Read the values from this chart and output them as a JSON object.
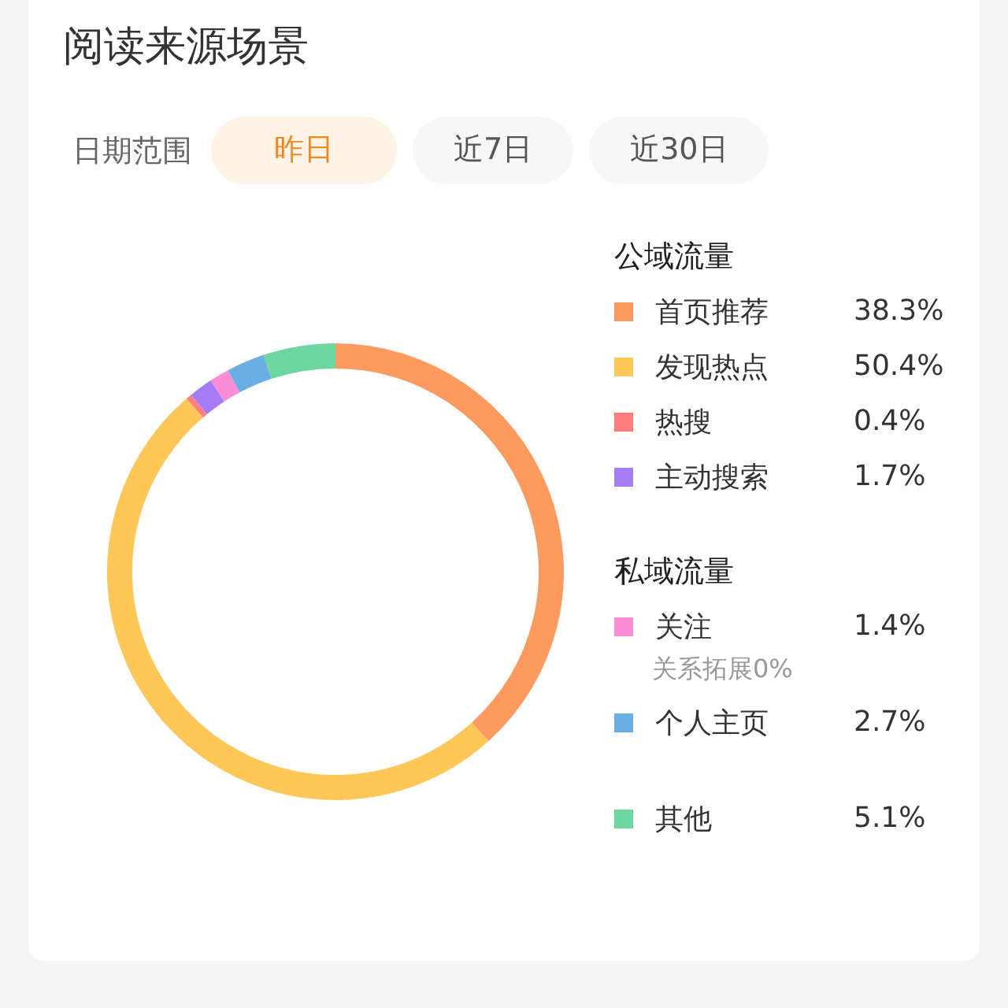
{
  "chart_data": {
    "type": "donut",
    "title": "阅读来源场景",
    "categories": [
      "首页推荐",
      "发现热点",
      "热搜",
      "主动搜索",
      "关注",
      "个人主页",
      "其他"
    ],
    "values": [
      38.3,
      50.4,
      0.4,
      1.7,
      1.4,
      2.7,
      5.1
    ],
    "value_labels": [
      "38.3%",
      "50.4%",
      "0.4%",
      "1.7%",
      "1.4%",
      "2.7%",
      "5.1%"
    ],
    "colors": [
      "#fd9a60",
      "#ffc658",
      "#ff7f7f",
      "#a57cf5",
      "#f98ed6",
      "#6aaee6",
      "#6ed6a0"
    ],
    "legend": "right",
    "annotations": [
      "日期范围",
      "昨日",
      "近7日",
      "近30日",
      "公域流量",
      "私域流量",
      "关系拓展0%"
    ]
  }
}
